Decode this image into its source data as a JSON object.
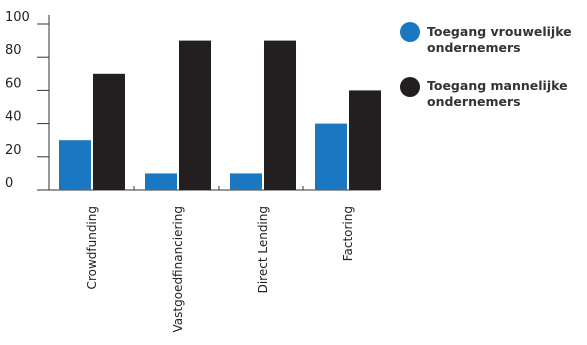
{
  "chart_data": {
    "type": "bar",
    "categories": [
      "Crowdfunding",
      "Vastgoedfinanciering",
      "Direct Lending",
      "Factoring"
    ],
    "series": [
      {
        "name": "Toegang vrouwelijke ondernemers",
        "values": [
          30,
          10,
          10,
          40
        ],
        "color": "#1a78c2"
      },
      {
        "name": "Toegang mannelijke ondernemers",
        "values": [
          70,
          90,
          90,
          60
        ],
        "color": "#231f20"
      }
    ],
    "yticks": [
      0,
      20,
      40,
      60,
      80,
      100
    ],
    "ylim": [
      0,
      100
    ],
    "title": "",
    "xlabel": "",
    "ylabel": "",
    "grid": false,
    "legend_position": "right"
  },
  "legend": {
    "items": [
      {
        "line1": "Toegang vrouwelijke",
        "line2": "ondernemers",
        "color": "#1a78c2"
      },
      {
        "line1": "Toegang mannelijke",
        "line2": "ondernemers",
        "color": "#231f20"
      }
    ]
  }
}
